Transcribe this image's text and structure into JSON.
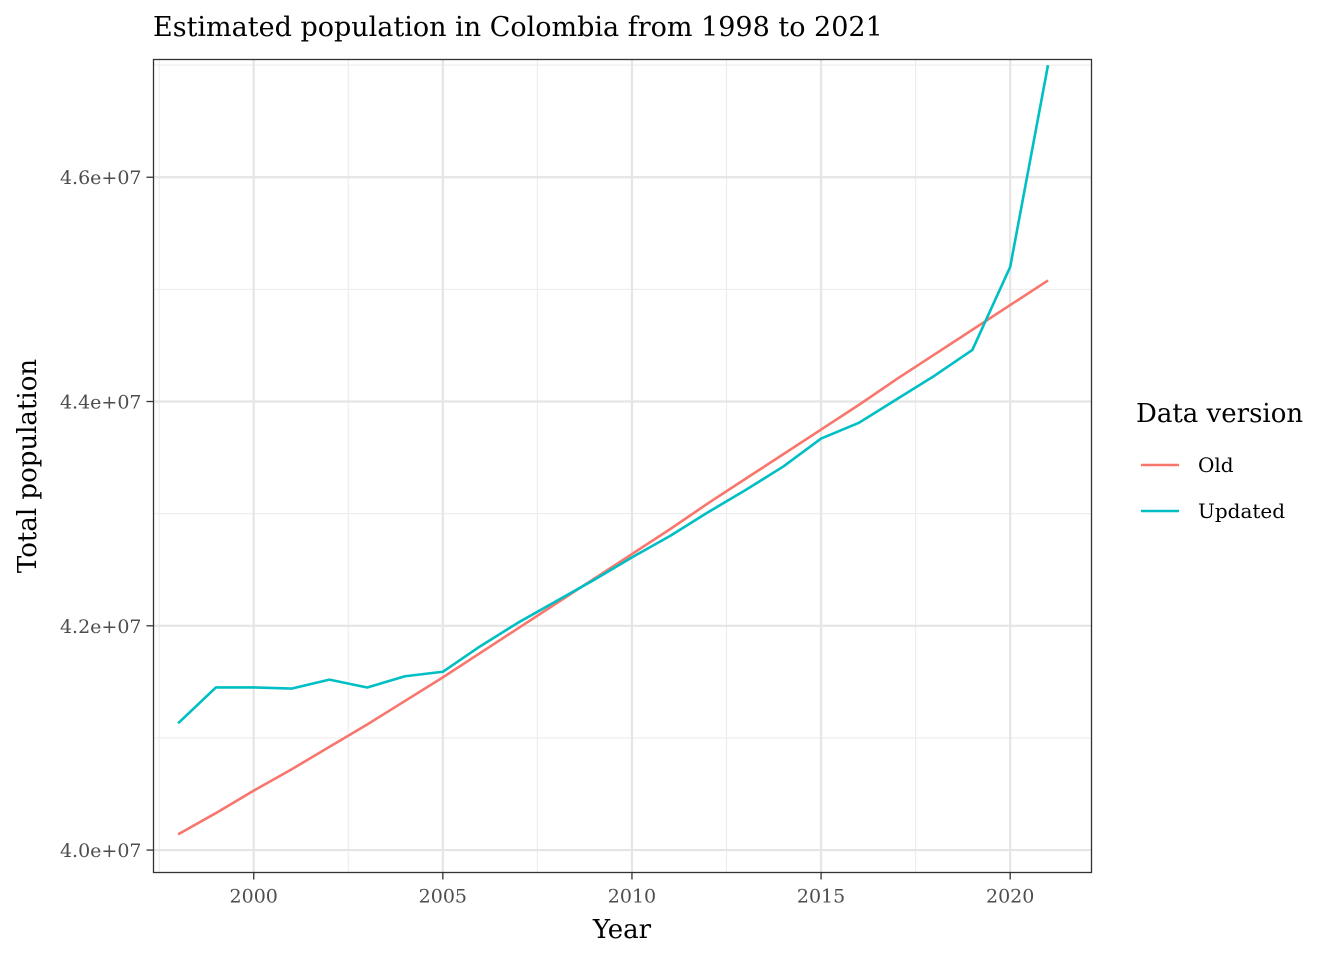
{
  "chart_data": {
    "type": "line",
    "title": "Estimated population in Colombia from 1998 to 2021",
    "xlabel": "Year",
    "ylabel": "Total population",
    "xlim": [
      1997.35,
      2022.15
    ],
    "ylim": [
      39800000,
      47050000
    ],
    "x_ticks": [
      2000,
      2005,
      2010,
      2015,
      2020
    ],
    "x_tick_labels": [
      "2000",
      "2005",
      "2010",
      "2015",
      "2020"
    ],
    "x_minor_ticks": [
      1997.5,
      2002.5,
      2007.5,
      2012.5,
      2017.5
    ],
    "y_ticks": [
      40000000,
      42000000,
      44000000,
      46000000
    ],
    "y_tick_labels": [
      "4.0e+07",
      "4.2e+07",
      "4.4e+07",
      "4.6e+07"
    ],
    "y_minor_ticks": [
      41000000,
      43000000,
      45000000,
      47000000
    ],
    "grid": true,
    "legend": {
      "title": "Data version",
      "placement": "right"
    },
    "x": [
      1998,
      1999,
      2000,
      2001,
      2002,
      2003,
      2004,
      2005,
      2006,
      2007,
      2008,
      2009,
      2010,
      2011,
      2012,
      2013,
      2014,
      2015,
      2016,
      2017,
      2018,
      2019,
      2020,
      2021
    ],
    "series": [
      {
        "name": "Old",
        "color": "#F8766D",
        "values": [
          40140000,
          40330000,
          40530000,
          40720000,
          40920000,
          41120000,
          41330000,
          41540000,
          41760000,
          41980000,
          42200000,
          42420000,
          42640000,
          42860000,
          43090000,
          43310000,
          43530000,
          43750000,
          43970000,
          44200000,
          44420000,
          44640000,
          44860000,
          45080000
        ]
      },
      {
        "name": "Updated",
        "color": "#00BFC4",
        "values": [
          41130000,
          41450000,
          41450000,
          41440000,
          41520000,
          41450000,
          41550000,
          41590000,
          41820000,
          42030000,
          42220000,
          42410000,
          42610000,
          42800000,
          43010000,
          43210000,
          43420000,
          43670000,
          43810000,
          44020000,
          44230000,
          44460000,
          45200000,
          47000000
        ]
      }
    ]
  }
}
